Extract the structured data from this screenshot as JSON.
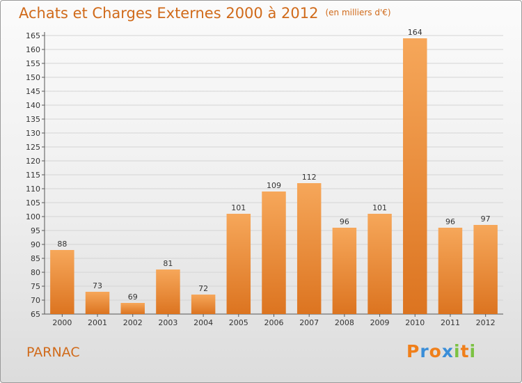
{
  "title": "Achats et Charges Externes 2000 à 2012",
  "subtitle": "(en milliers d'€)",
  "commune": "PARNAC",
  "logo": {
    "text": "Proxiti",
    "letters": [
      {
        "ch": "P",
        "color": "#f07f1a"
      },
      {
        "ch": "r",
        "color": "#3a8ed8"
      },
      {
        "ch": "o",
        "color": "#f07f1a"
      },
      {
        "ch": "x",
        "color": "#3a8ed8"
      },
      {
        "ch": "i",
        "color": "#7cc243"
      },
      {
        "ch": "t",
        "color": "#f07f1a"
      },
      {
        "ch": "i",
        "color": "#7cc243"
      }
    ]
  },
  "colors": {
    "bar_top": "#f6a75a",
    "bar_bottom": "#dc7420",
    "accent": "#d06a1a",
    "grid": "#d4d4d4"
  },
  "chart_data": {
    "type": "bar",
    "categories": [
      "2000",
      "2001",
      "2002",
      "2003",
      "2004",
      "2005",
      "2006",
      "2007",
      "2008",
      "2009",
      "2010",
      "2011",
      "2012"
    ],
    "values": [
      88,
      73,
      69,
      81,
      72,
      101,
      109,
      112,
      96,
      101,
      164,
      96,
      97
    ],
    "ylim": [
      65,
      165
    ],
    "yticks": [
      65,
      70,
      75,
      80,
      85,
      90,
      95,
      100,
      105,
      110,
      115,
      120,
      125,
      130,
      135,
      140,
      145,
      150,
      155,
      160,
      165
    ],
    "grid": true,
    "data_labels": true
  }
}
